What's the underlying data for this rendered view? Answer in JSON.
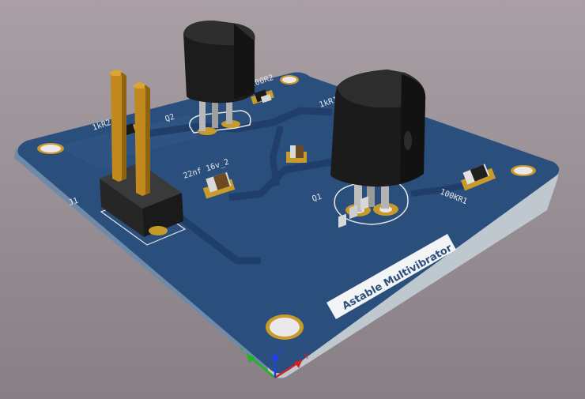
{
  "viewer": {
    "board_title": "Astable Multivibrator",
    "background_top": "#a99fa5",
    "background_bottom": "#877f84",
    "board_color": "#2b4f7d",
    "copper_color": "#c79a2a",
    "silkscreen_color": "#e6e6e6"
  },
  "components": {
    "q2": {
      "ref": "Q2",
      "type": "TO-92 transistor"
    },
    "q1": {
      "ref": "Q1",
      "type": "TO-92 transistor"
    },
    "j1": {
      "ref": "J1",
      "type": "2-pin header"
    },
    "r_top_left": {
      "label": "1kR2"
    },
    "r_top_right": {
      "label": "100R2"
    },
    "r_mid": {
      "label": "1kR1"
    },
    "r1": {
      "label": "100KR1"
    },
    "c2": {
      "label": "22nf 16v_2"
    }
  },
  "axes": {
    "x": {
      "label": "X",
      "color": "#d42020"
    },
    "y": {
      "label": "Y",
      "color": "#22b422"
    },
    "z": {
      "label": "Z",
      "color": "#2040e0"
    }
  }
}
